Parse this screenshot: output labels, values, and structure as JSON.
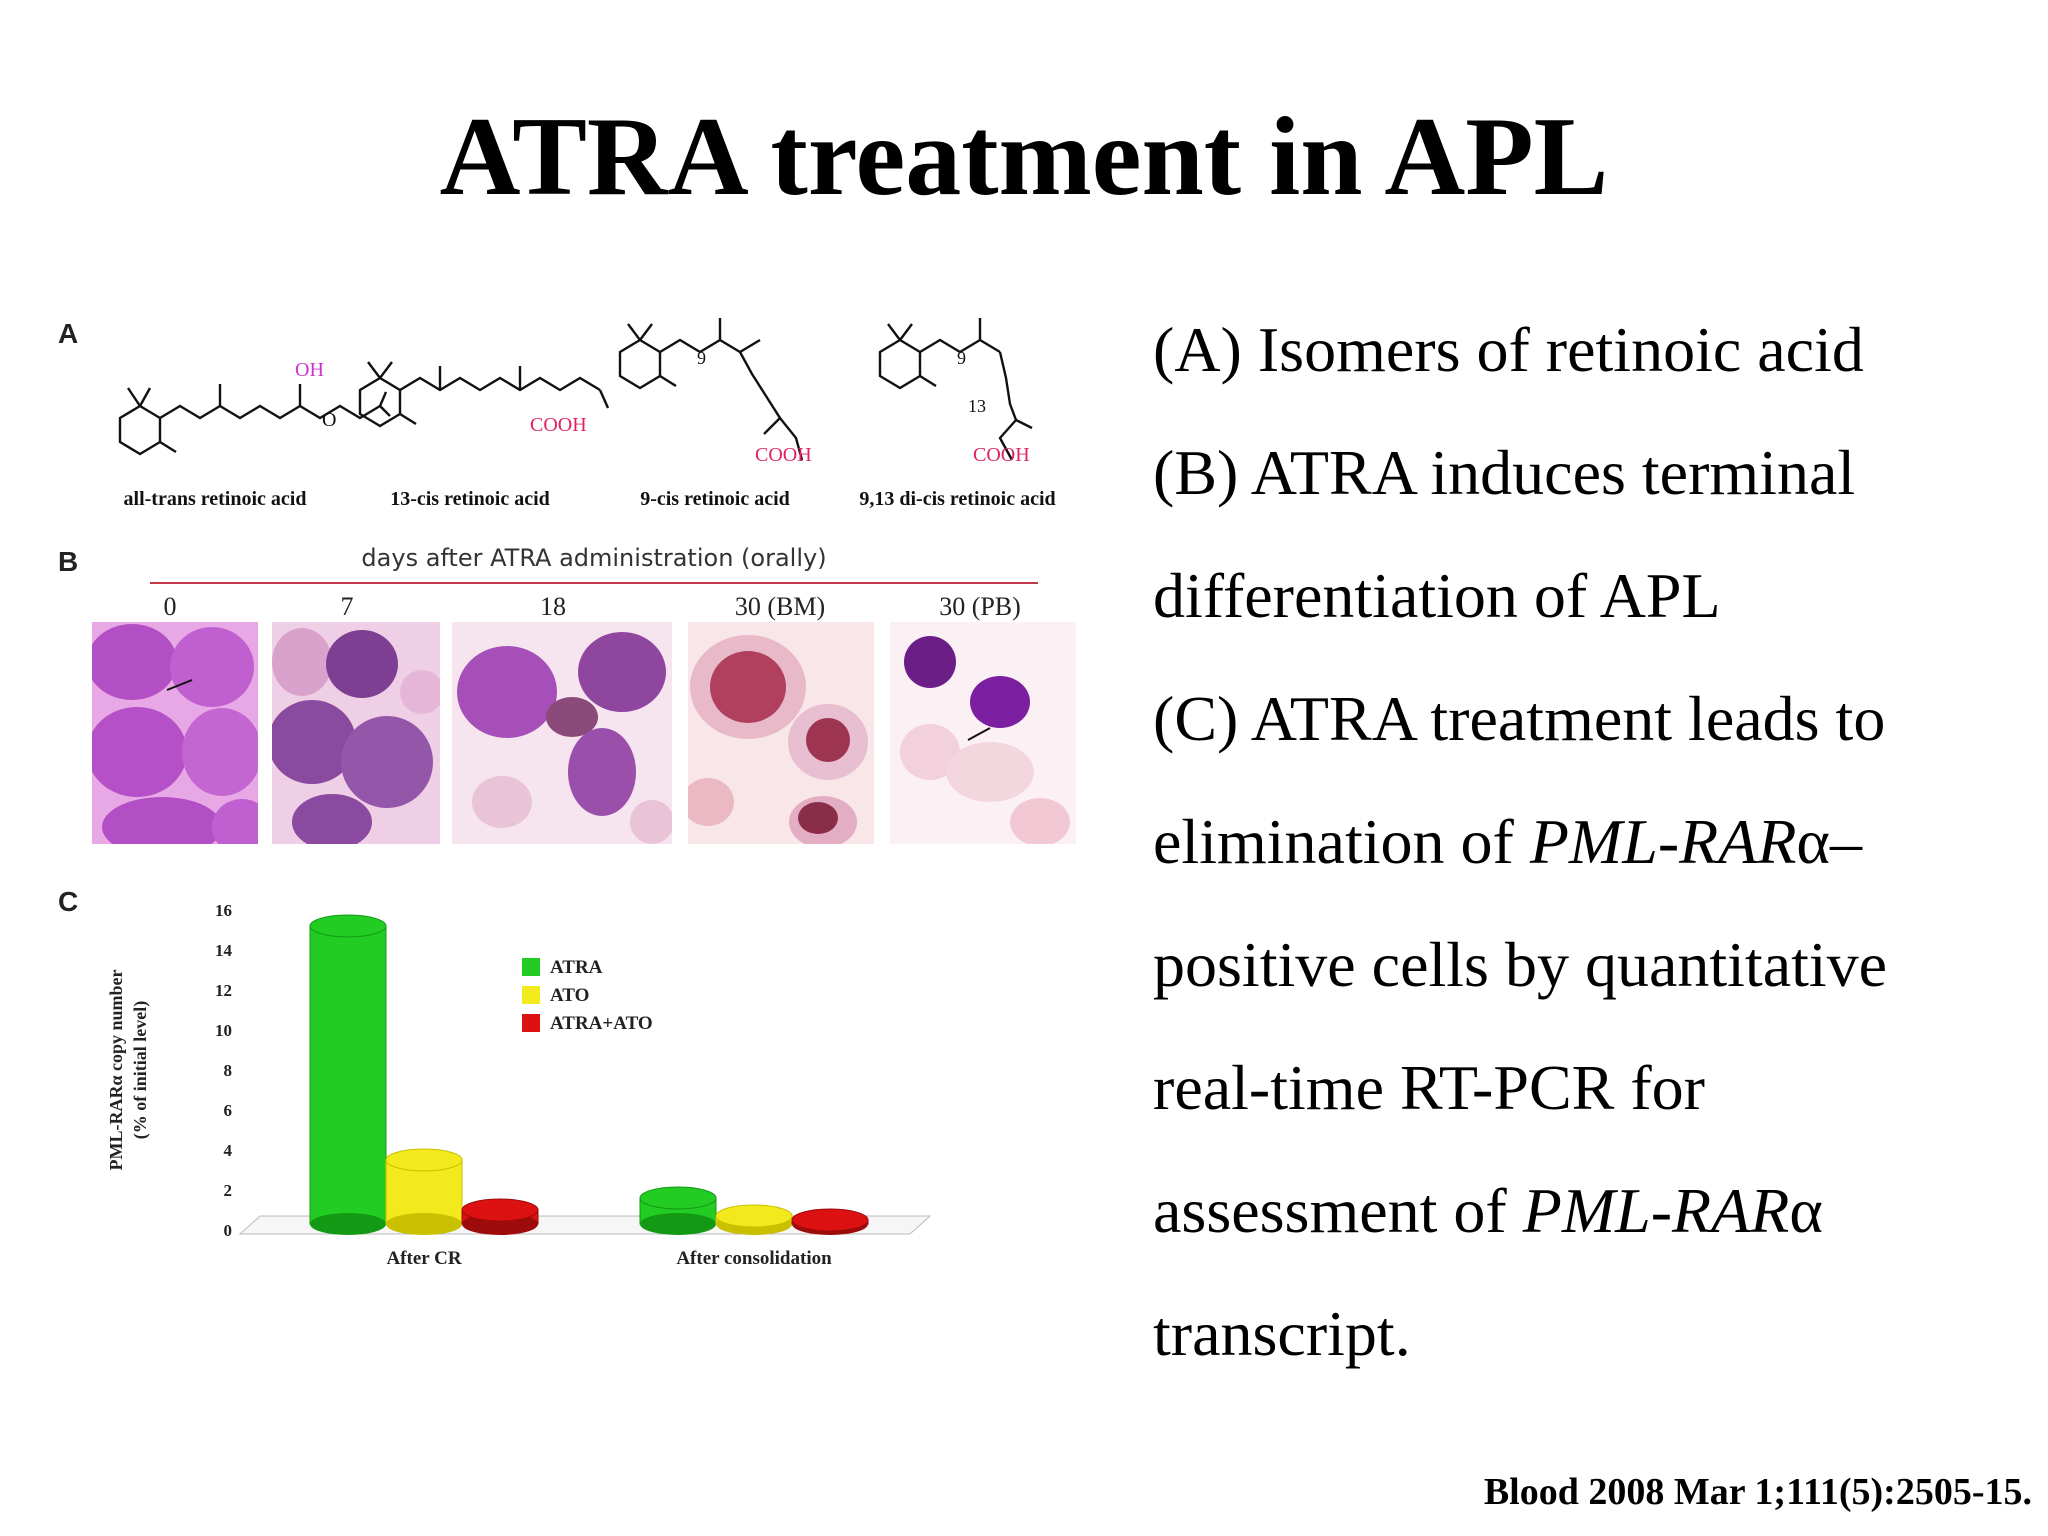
{
  "title": "ATRA treatment in APL",
  "panels": {
    "a_label": "A",
    "b_label": "B",
    "c_label": "C"
  },
  "molecules": [
    {
      "name": "all-trans retinoic acid",
      "group_label_1": "OH",
      "group_label_2": "O"
    },
    {
      "name": "13-cis retinoic acid",
      "group_label_1": "COOH"
    },
    {
      "name": "9-cis retinoic acid",
      "group_label_1": "COOH",
      "position_label": "9"
    },
    {
      "name": "9,13 di-cis retinoic acid",
      "group_label_1": "COOH",
      "position_label": "9",
      "position_label_2": "13"
    }
  ],
  "panel_b": {
    "header": "days after ATRA administration (orally)",
    "days": [
      "0",
      "7",
      "18",
      "30 (BM)",
      "30 (PB)"
    ]
  },
  "text_lines": [
    {
      "parts": [
        {
          "t": "(A) Isomers of retinoic acid",
          "i": false
        }
      ]
    },
    {
      "parts": [
        {
          "t": "(B) ATRA induces terminal",
          "i": false
        }
      ]
    },
    {
      "parts": [
        {
          "t": "differentiation of APL",
          "i": false
        }
      ]
    },
    {
      "parts": [
        {
          "t": "(C) ATRA treatment leads to",
          "i": false
        }
      ]
    },
    {
      "parts": [
        {
          "t": "elimination of ",
          "i": false
        },
        {
          "t": "PML-RAR",
          "i": true
        },
        {
          "t": "α–",
          "i": false
        }
      ]
    },
    {
      "parts": [
        {
          "t": "positive cells by quantitative",
          "i": false
        }
      ]
    },
    {
      "parts": [
        {
          "t": "real-time RT-PCR for",
          "i": false
        }
      ]
    },
    {
      "parts": [
        {
          "t": "assessment of ",
          "i": false
        },
        {
          "t": "PML-RAR",
          "i": true
        },
        {
          "t": "α",
          "i": false
        }
      ]
    },
    {
      "parts": [
        {
          "t": "transcript.",
          "i": false
        }
      ]
    }
  ],
  "citation": "Blood 2008 Mar 1;111(5):2505-15.",
  "colors": {
    "atra": "#22cc22",
    "ato": "#f2ea1c",
    "atra_ato": "#dd1111",
    "red_label": "#e0245e",
    "magenta_label": "#cc33cc",
    "divider": "#c23a4a"
  },
  "chart_data": {
    "type": "bar",
    "ylabel": "PML-RARα copy number (% of initial level)",
    "ylim": [
      0,
      16
    ],
    "yticks": [
      "0",
      "2",
      "4",
      "6",
      "8",
      "10",
      "12",
      "14",
      "16"
    ],
    "categories": [
      "After CR",
      "After consolidation"
    ],
    "legend_position": "top-center",
    "series": [
      {
        "name": "ATRA",
        "values": [
          15.2,
          1.6
        ],
        "color": "#22cc22"
      },
      {
        "name": "ATO",
        "values": [
          3.5,
          0.7
        ],
        "color": "#f2ea1c"
      },
      {
        "name": "ATRA+ATO",
        "values": [
          1.0,
          0.5
        ],
        "color": "#dd1111"
      }
    ]
  }
}
